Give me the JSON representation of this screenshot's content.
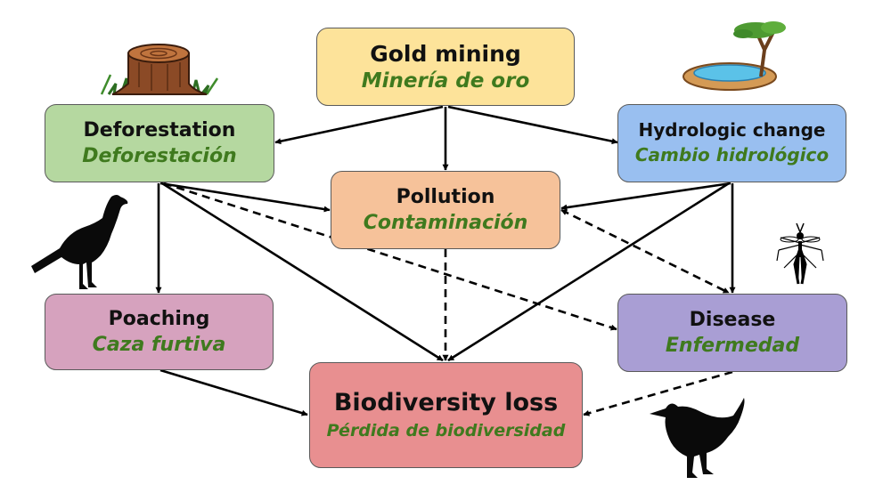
{
  "diagram": {
    "nodes": [
      {
        "id": "gold",
        "en": "Gold mining",
        "es": "Minería de oro",
        "fill": "#fde39a"
      },
      {
        "id": "defor",
        "en": "Deforestation",
        "es": "Deforestación",
        "fill": "#b5d8a0"
      },
      {
        "id": "hydro",
        "en": "Hydrologic change",
        "es": "Cambio hidrológico",
        "fill": "#99bff0"
      },
      {
        "id": "pollution",
        "en": "Pollution",
        "es": "Contaminación",
        "fill": "#f6c29a"
      },
      {
        "id": "poaching",
        "en": "Poaching",
        "es": "Caza furtiva",
        "fill": "#d6a2be"
      },
      {
        "id": "disease",
        "en": "Disease",
        "es": "Enfermedad",
        "fill": "#a99ed4"
      },
      {
        "id": "bioloss",
        "en": "Biodiversity loss",
        "es": "Pérdida de biodiversidad",
        "fill": "#e88f90"
      }
    ],
    "edges": [
      {
        "from": "gold",
        "to": "defor",
        "style": "solid"
      },
      {
        "from": "gold",
        "to": "pollution",
        "style": "solid"
      },
      {
        "from": "gold",
        "to": "hydro",
        "style": "solid"
      },
      {
        "from": "defor",
        "to": "pollution",
        "style": "solid"
      },
      {
        "from": "defor",
        "to": "poaching",
        "style": "solid"
      },
      {
        "from": "defor",
        "to": "bioloss",
        "style": "solid"
      },
      {
        "from": "defor",
        "to": "disease",
        "style": "dashed"
      },
      {
        "from": "hydro",
        "to": "pollution",
        "style": "solid"
      },
      {
        "from": "hydro",
        "to": "bioloss",
        "style": "solid"
      },
      {
        "from": "hydro",
        "to": "disease",
        "style": "solid"
      },
      {
        "from": "pollution",
        "to": "bioloss",
        "style": "dashed"
      },
      {
        "from": "pollution",
        "to": "disease",
        "style": "dashed-bidirectional"
      },
      {
        "from": "poaching",
        "to": "bioloss",
        "style": "solid"
      },
      {
        "from": "disease",
        "to": "bioloss",
        "style": "dashed"
      }
    ],
    "icons": [
      "tree-stump-icon",
      "pond-tree-icon",
      "ground-bird-icon",
      "mosquito-icon",
      "small-bird-icon"
    ]
  }
}
